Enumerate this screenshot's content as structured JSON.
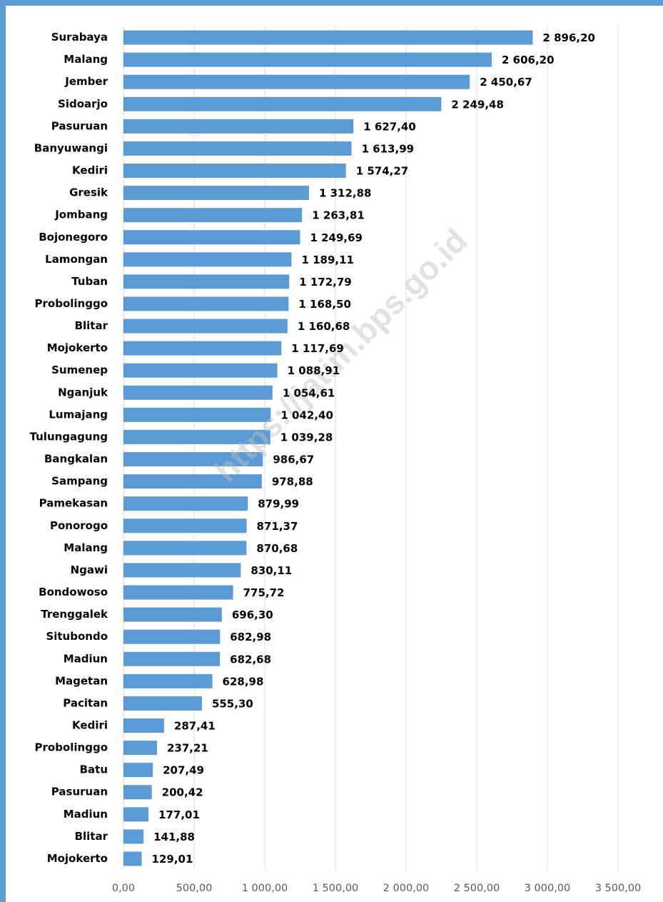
{
  "chart_data": {
    "type": "barh",
    "watermark": "https://jatim.bps.go.id",
    "categories": [
      "Surabaya",
      "Malang",
      "Jember",
      "Sidoarjo",
      "Pasuruan",
      "Banyuwangi",
      "Kediri",
      "Gresik",
      "Jombang",
      "Bojonegoro",
      "Lamongan",
      "Tuban",
      "Probolinggo",
      "Blitar",
      "Mojokerto",
      "Sumenep",
      "Nganjuk",
      "Lumajang",
      "Tulungagung",
      "Bangkalan",
      "Sampang",
      "Pamekasan",
      "Ponorogo",
      "Malang",
      "Ngawi",
      "Bondowoso",
      "Trenggalek",
      "Situbondo",
      "Madiun",
      "Magetan",
      "Pacitan",
      "Kediri",
      "Probolinggo",
      "Batu",
      "Pasuruan",
      "Madiun",
      "Blitar",
      "Mojokerto"
    ],
    "values": [
      2896.2,
      2606.2,
      2450.67,
      2249.48,
      1627.4,
      1613.99,
      1574.27,
      1312.88,
      1263.81,
      1249.69,
      1189.11,
      1172.79,
      1168.5,
      1160.68,
      1117.69,
      1088.91,
      1054.61,
      1042.4,
      1039.28,
      986.67,
      978.88,
      879.99,
      871.37,
      870.68,
      830.11,
      775.72,
      696.3,
      682.98,
      682.68,
      628.98,
      555.3,
      287.41,
      237.21,
      207.49,
      200.42,
      177.01,
      141.88,
      129.01
    ],
    "value_labels": [
      "2 896,20",
      "2 606,20",
      "2 450,67",
      "2 249,48",
      "1 627,40",
      "1 613,99",
      "1 574,27",
      "1 312,88",
      "1 263,81",
      "1 249,69",
      "1 189,11",
      "1 172,79",
      "1 168,50",
      "1 160,68",
      "1 117,69",
      "1 088,91",
      "1 054,61",
      "1 042,40",
      "1 039,28",
      "986,67",
      "978,88",
      "879,99",
      "871,37",
      "870,68",
      "830,11",
      "775,72",
      "696,30",
      "682,98",
      "682,68",
      "628,98",
      "555,30",
      "287,41",
      "237,21",
      "207,49",
      "200,42",
      "177,01",
      "141,88",
      "129,01"
    ],
    "color": "#5b9bd5",
    "xlim": [
      0,
      3500
    ],
    "xticks": [
      {
        "value": 0,
        "label": "0,00"
      },
      {
        "value": 500,
        "label": "500,00"
      },
      {
        "value": 1000,
        "label": "1 000,00"
      },
      {
        "value": 1500,
        "label": "1 500,00"
      },
      {
        "value": 2000,
        "label": "2 000,00"
      },
      {
        "value": 2500,
        "label": "2 500,00"
      },
      {
        "value": 3000,
        "label": "3 000,00"
      },
      {
        "value": 3500,
        "label": "3 500,00"
      }
    ],
    "grid": true
  }
}
